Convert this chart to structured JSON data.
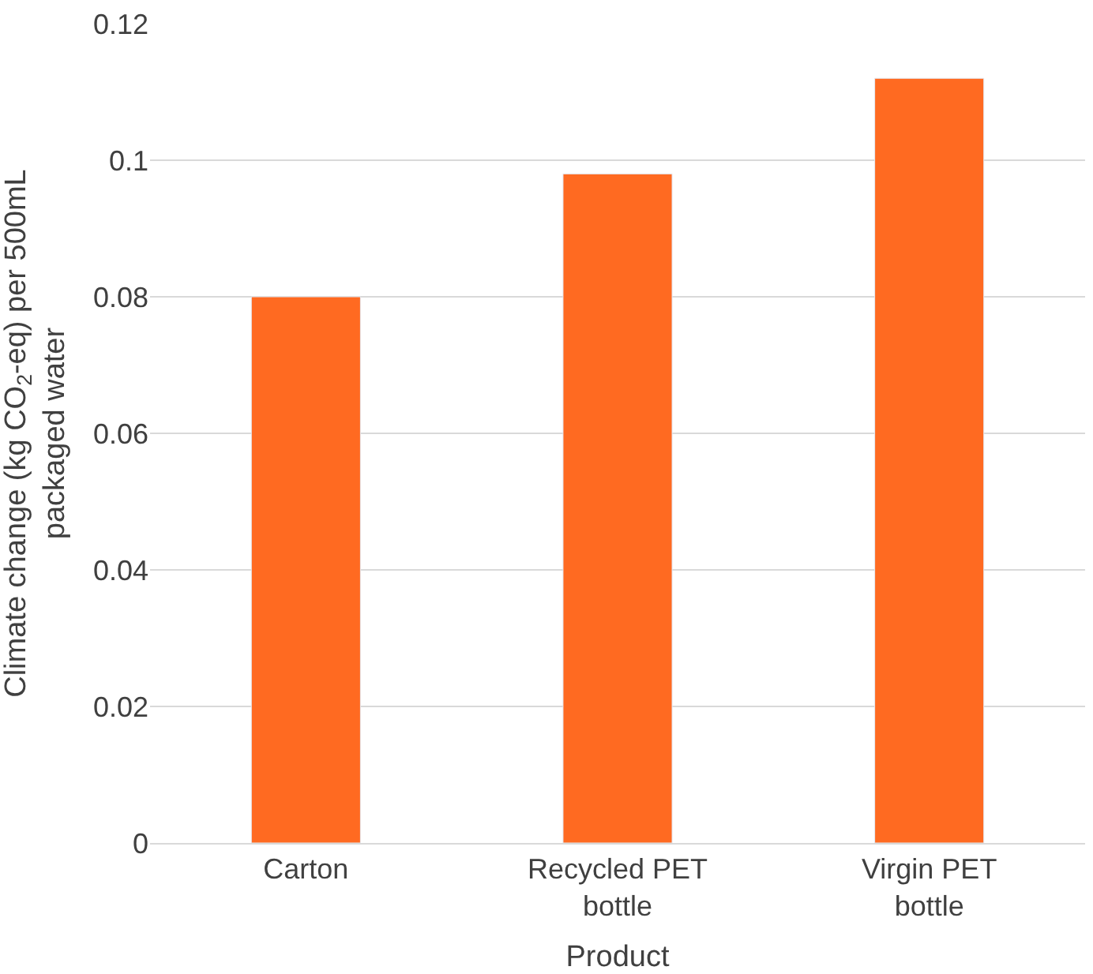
{
  "chart_data": {
    "type": "bar",
    "xlabel": "Product",
    "ylabel": "Climate change (kg CO$_{2}$-eq) per 500mL packaged water",
    "categories": [
      "Carton",
      "Recycled PET bottle",
      "Virgin PET bottle"
    ],
    "series": [
      {
        "color": "#ff6a21",
        "values": [
          0.08,
          0.098,
          0.112
        ]
      }
    ],
    "ylim": [
      0,
      0.12
    ],
    "yticks": [
      0,
      0.02,
      0.04,
      0.06,
      0.08,
      0.1,
      0.12
    ],
    "grid": "y",
    "legend": false
  }
}
